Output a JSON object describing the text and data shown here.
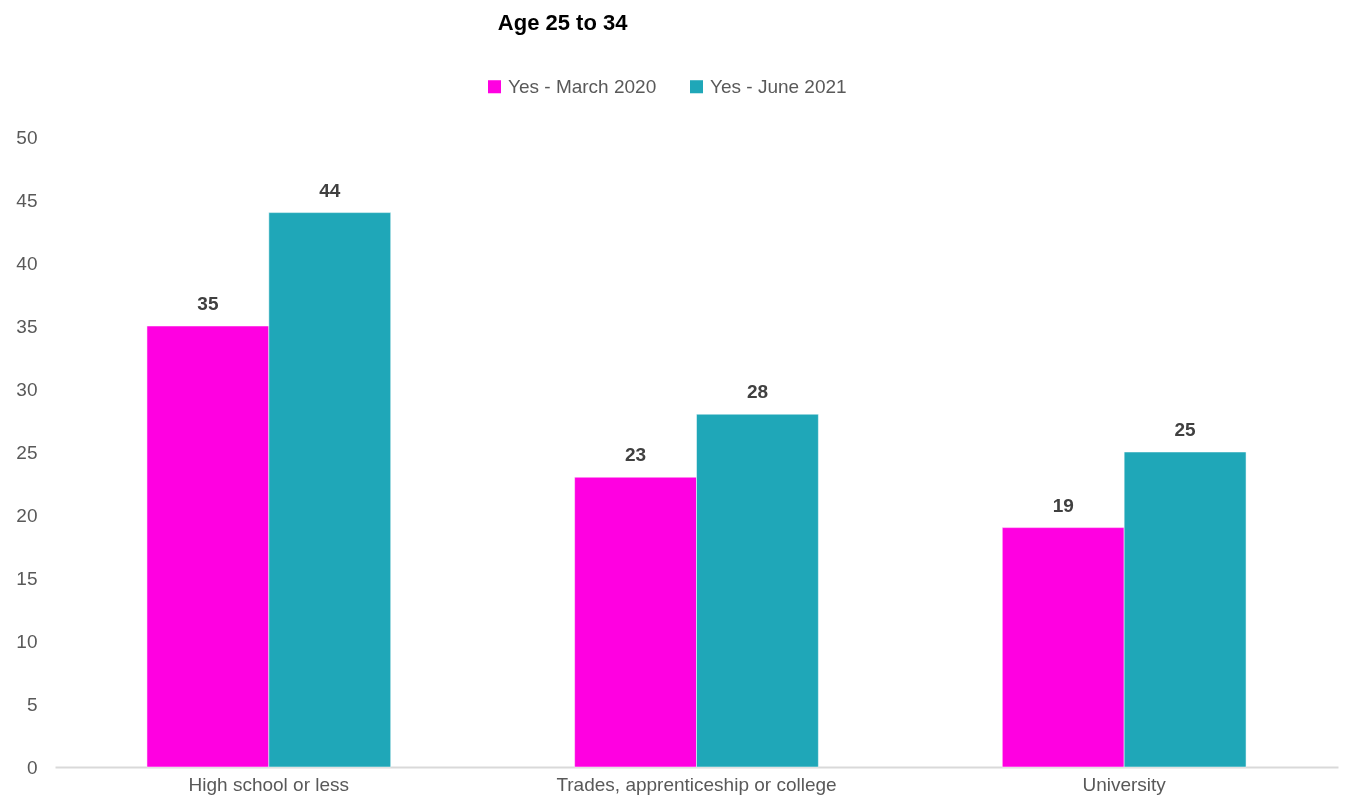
{
  "chart_data": {
    "type": "bar",
    "title": "Age 25 to 34",
    "categories": [
      "High school or less",
      "Trades, apprenticeship or college",
      "University"
    ],
    "series": [
      {
        "name": "Yes - March 2020",
        "color": "#ff00e1",
        "values": [
          35,
          23,
          19
        ]
      },
      {
        "name": "Yes - June 2021",
        "color": "#1fa7b8",
        "values": [
          44,
          28,
          25
        ]
      }
    ],
    "ylim": [
      0,
      50
    ],
    "yticks": [
      0,
      5,
      10,
      15,
      20,
      25,
      30,
      35,
      40,
      45,
      50
    ],
    "grid": false,
    "legend": "top",
    "data_labels": true
  }
}
